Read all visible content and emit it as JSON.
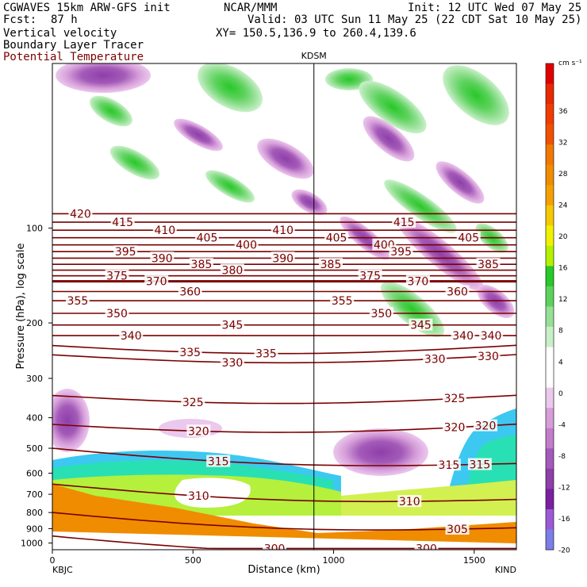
{
  "header": {
    "model": "CGWAVES 15km ARW-GFS init",
    "fcst_label": "Fcst:",
    "fcst_value": "87 h",
    "org": "NCAR/MMM",
    "init": "Init: 12 UTC Wed 07 May 25",
    "valid": "Valid: 03 UTC Sun 11 May 25 (22 CDT Sat 10 May 25)",
    "xy": "XY= 150.5,136.9 to 260.4,139.6",
    "field1": "Vertical velocity",
    "field2": "Boundary Layer Tracer",
    "field3": "Potential Temperature",
    "field3_color": "#7a0000"
  },
  "chart_data": {
    "type": "heatmap",
    "title": "",
    "xlabel": "Distance (km)",
    "ylabel": "Pressure (hPa), log scale",
    "x_range": [
      0,
      1650
    ],
    "x_ticks": [
      0,
      500,
      1000,
      1500
    ],
    "y_range_hpa": [
      1050,
      30
    ],
    "y_scale": "log",
    "y_ticks": [
      1000,
      900,
      800,
      700,
      600,
      500,
      400,
      300,
      200,
      100
    ],
    "station_left": "KBJC",
    "station_right": "KIND",
    "station_mid": "KDSM",
    "station_mid_x_km": 930,
    "colorbar": {
      "unit": "cm s⁻¹",
      "levels": [
        -20,
        -16,
        -12,
        -8,
        -4,
        0,
        4,
        8,
        12,
        16,
        20,
        24,
        28,
        32,
        36
      ],
      "colors": [
        "#7d7de8",
        "#9b59d6",
        "#7b1fa2",
        "#8e3fa8",
        "#a35ab8",
        "#c27cc9",
        "#d69ed9",
        "#ebc8ee",
        "#ffffff",
        "#ffffff",
        "#c8f0c8",
        "#96e096",
        "#5cd25c",
        "#28c828",
        "#b4f000",
        "#f0f000",
        "#f5c800",
        "#f5a000",
        "#f08c00",
        "#f07800",
        "#f05000",
        "#f03c00",
        "#e82800",
        "#e00000"
      ],
      "label_values": [
        "36",
        "32",
        "28",
        "24",
        "20",
        "16",
        "12",
        "8",
        "4",
        "0",
        "-4",
        "-8",
        "-12",
        "-16",
        "-20"
      ]
    },
    "isentropes": [
      {
        "theta": 420,
        "label_x_km": [
          100
        ]
      },
      {
        "theta": 415,
        "label_x_km": [
          250,
          1250
        ]
      },
      {
        "theta": 410,
        "label_x_km": [
          400,
          820
        ]
      },
      {
        "theta": 405,
        "label_x_km": [
          550,
          1010,
          1480
        ]
      },
      {
        "theta": 400,
        "label_x_km": [
          690,
          1180
        ]
      },
      {
        "theta": 395,
        "label_x_km": [
          260,
          1240
        ]
      },
      {
        "theta": 390,
        "label_x_km": [
          390,
          820
        ]
      },
      {
        "theta": 385,
        "label_x_km": [
          530,
          990,
          1550
        ]
      },
      {
        "theta": 380,
        "label_x_km": [
          640
        ]
      },
      {
        "theta": 375,
        "label_x_km": [
          230,
          1130
        ]
      },
      {
        "theta": 370,
        "label_x_km": [
          370,
          1300
        ]
      },
      {
        "theta": 360,
        "label_x_km": [
          490,
          1440
        ]
      },
      {
        "theta": 355,
        "label_x_km": [
          90,
          1030
        ]
      },
      {
        "theta": 350,
        "label_x_km": [
          230,
          1170
        ]
      },
      {
        "theta": 345,
        "label_x_km": [
          640,
          1310
        ]
      },
      {
        "theta": 340,
        "label_x_km": [
          280,
          1460,
          1560
        ]
      },
      {
        "theta": 335,
        "label_x_km": [
          490,
          760
        ]
      },
      {
        "theta": 330,
        "label_x_km": [
          640,
          1360,
          1550
        ]
      },
      {
        "theta": 325,
        "label_x_km": [
          500,
          1430
        ]
      },
      {
        "theta": 320,
        "label_x_km": [
          520,
          1430,
          1540
        ]
      },
      {
        "theta": 315,
        "label_x_km": [
          590,
          1410,
          1520
        ]
      },
      {
        "theta": 310,
        "label_x_km": [
          520,
          1270
        ]
      },
      {
        "theta": 305,
        "label_x_km": [
          1440
        ]
      },
      {
        "theta": 300,
        "label_x_km": [
          790,
          1330
        ]
      }
    ]
  }
}
